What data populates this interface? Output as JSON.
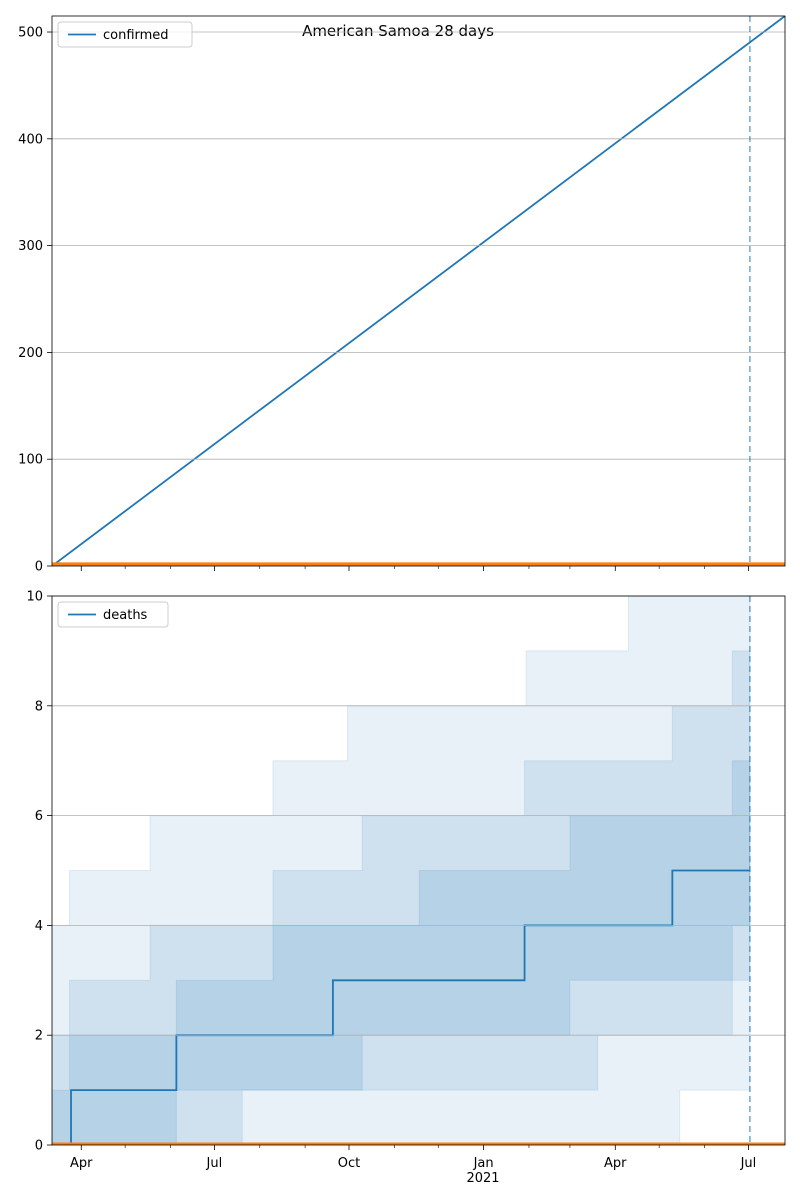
{
  "chart_data": [
    {
      "type": "line",
      "title": "American Samoa 28 days",
      "xlabel": "",
      "ylabel": "",
      "xlim": [
        "2021-03-12",
        "2022-07-26"
      ],
      "ylim": [
        0,
        515
      ],
      "yticks": [
        0,
        100,
        200,
        300,
        400,
        500
      ],
      "grid": "horizontal",
      "legend_position": "top-left",
      "forecast_start": "2022-07-02",
      "series": [
        {
          "name": "confirmed",
          "color": "#1f77b4",
          "x": [
            "2021-03-12",
            "2022-07-26"
          ],
          "values": [
            0,
            515
          ]
        },
        {
          "color": "#ff7f0e",
          "x": [
            "2021-03-12",
            "2022-07-26"
          ],
          "values": [
            1,
            1
          ]
        }
      ]
    },
    {
      "type": "line",
      "xlabel": "",
      "ylabel": "",
      "xlim": [
        "2021-03-12",
        "2022-07-26"
      ],
      "ylim": [
        0,
        10
      ],
      "yticks": [
        0,
        2,
        4,
        6,
        8,
        10
      ],
      "grid": "horizontal",
      "legend_position": "top-left",
      "forecast_start": "2022-07-02",
      "series": [
        {
          "name": "deaths",
          "color": "#1f77b4",
          "step": true,
          "x": [
            "2021-03-12",
            "2021-03-25",
            "2021-06-05",
            "2021-09-20",
            "2022-01-29",
            "2022-05-10",
            "2022-07-02"
          ],
          "values": [
            0,
            1,
            2,
            3,
            4,
            5,
            5
          ]
        },
        {
          "color": "#ff7f0e",
          "x": [
            "2021-03-12",
            "2022-07-26"
          ],
          "values": [
            0,
            0
          ]
        }
      ],
      "bands": [
        {
          "color": "#1f77b4",
          "opacity": 0.1,
          "x": [
            "2021-03-12",
            "2021-03-24",
            "2021-04-26",
            "2021-05-18",
            "2021-06-05",
            "2021-07-15",
            "2021-08-10",
            "2021-09-15",
            "2021-09-30",
            "2021-11-18",
            "2022-01-05",
            "2022-01-30",
            "2022-03-20",
            "2022-04-10",
            "2022-05-15",
            "2022-06-20",
            "2022-07-02"
          ],
          "upper": [
            4,
            5,
            5,
            6,
            6,
            6,
            7,
            7,
            8,
            8,
            8,
            9,
            9,
            10,
            10,
            10,
            10
          ],
          "lower": [
            0,
            0,
            0,
            0,
            0,
            0,
            0,
            0,
            0,
            0,
            0,
            0,
            0,
            0,
            1,
            1,
            1
          ]
        },
        {
          "color": "#1f77b4",
          "opacity": 0.12,
          "x": [
            "2021-03-12",
            "2021-03-24",
            "2021-05-18",
            "2021-06-05",
            "2021-07-20",
            "2021-08-10",
            "2021-09-20",
            "2021-10-10",
            "2021-11-18",
            "2022-01-05",
            "2022-01-29",
            "2022-03-01",
            "2022-03-20",
            "2022-05-10",
            "2022-06-20",
            "2022-07-02"
          ],
          "upper": [
            2,
            3,
            4,
            4,
            4,
            5,
            5,
            6,
            6,
            6,
            7,
            7,
            7,
            8,
            9,
            9
          ],
          "lower": [
            0,
            0,
            0,
            0,
            1,
            1,
            1,
            1,
            1,
            1,
            1,
            1,
            2,
            2,
            3,
            3
          ]
        },
        {
          "color": "#1f77b4",
          "opacity": 0.14,
          "x": [
            "2021-03-12",
            "2021-03-24",
            "2021-05-18",
            "2021-06-05",
            "2021-07-20",
            "2021-08-10",
            "2021-09-20",
            "2021-10-10",
            "2021-11-18",
            "2022-01-05",
            "2022-01-29",
            "2022-03-01",
            "2022-03-20",
            "2022-05-10",
            "2022-06-20",
            "2022-07-02"
          ],
          "upper": [
            1,
            2,
            2,
            3,
            3,
            4,
            4,
            4,
            5,
            5,
            5,
            6,
            6,
            6,
            7,
            7
          ],
          "lower": [
            0,
            0,
            0,
            1,
            1,
            1,
            1,
            2,
            2,
            2,
            2,
            3,
            3,
            3,
            4,
            4
          ]
        }
      ]
    }
  ],
  "x_axis": {
    "ticks": [
      {
        "date": "2021-04-01",
        "label": "Apr"
      },
      {
        "date": "2021-07-01",
        "label": "Jul"
      },
      {
        "date": "2021-10-01",
        "label": "Oct"
      },
      {
        "date": "2022-01-01",
        "label": "Jan"
      },
      {
        "date": "2022-04-01",
        "label": "Apr"
      },
      {
        "date": "2022-07-01",
        "label": "Jul"
      }
    ],
    "minor_ticks": [
      "2021-05-01",
      "2021-06-01",
      "2021-08-01",
      "2021-09-01",
      "2021-11-01",
      "2021-12-01",
      "2022-02-01",
      "2022-03-01",
      "2022-05-01",
      "2022-06-01"
    ],
    "year_label": "2021"
  }
}
